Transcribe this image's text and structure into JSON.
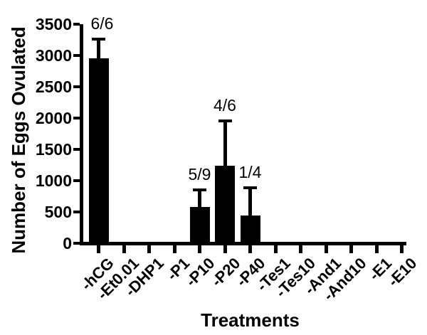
{
  "chart_data": {
    "type": "bar",
    "title": "",
    "xlabel": "Treatments",
    "ylabel": "Number of Eggs Ovulated",
    "categories": [
      "-hCG",
      "-Et0.01",
      "-DHP1",
      "-P1",
      "-P10",
      "-P20",
      "-P40",
      "-Tes1",
      "-Tes10",
      "-And1",
      "-And10",
      "-E1",
      "-E10"
    ],
    "values": [
      2950,
      0,
      0,
      0,
      580,
      1235,
      445,
      0,
      0,
      0,
      0,
      0,
      0
    ],
    "error_plus": [
      330,
      0,
      0,
      0,
      290,
      745,
      460,
      0,
      0,
      0,
      0,
      0,
      0
    ],
    "bar_count_labels": [
      "6/6",
      "",
      "",
      "",
      "5/9",
      "4/6",
      "1/4",
      "",
      "",
      "",
      "",
      "",
      ""
    ],
    "ylim": [
      0,
      3500
    ],
    "yticks": [
      0,
      500,
      1000,
      1500,
      2000,
      2500,
      3000,
      3500
    ],
    "grid": false,
    "legend": null,
    "bar_color": "#000000",
    "axis_color": "#000000",
    "background_color": "#ffffff"
  }
}
